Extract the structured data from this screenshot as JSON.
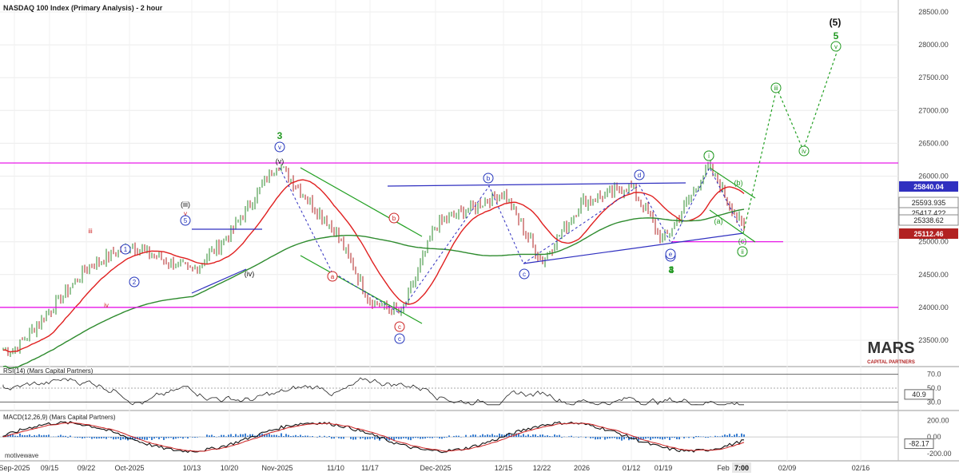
{
  "title": "NASDAQ 100 Index (Primary Analysis) - 2 hour",
  "colors": {
    "up_bar": "#2e8b2e",
    "down_bar": "#b22222",
    "ma_fast": "#e02020",
    "ma_slow": "#2e8b2e",
    "magenta_line": "#e600e6",
    "blue_line": "#3030c0",
    "green_line": "#22a022",
    "wave_blue": "#2233bb",
    "wave_red": "#cc2222",
    "wave_green": "#229922",
    "macd_hist": "#3b7fd1"
  },
  "chart_data": [
    {
      "type": "line",
      "name": "price-panel",
      "title": "NASDAQ 100 Index (Primary Analysis) - 2 hour",
      "x_ticks": [
        "Sep-2025",
        "09/15",
        "09/22",
        "Oct-2025",
        "10/13",
        "10/20",
        "Nov-2025",
        "11/10",
        "11/17",
        "Dec-2025",
        "12/15",
        "12/22",
        "2026",
        "01/12",
        "01/19",
        "Feb",
        "02/09",
        "02/16"
      ],
      "x_axis_timestamp": "7:00",
      "y_ticks": [
        23500,
        24000,
        24500,
        25000,
        25500,
        26000,
        26500,
        27000,
        27500,
        28000,
        28500
      ],
      "y_tick_labels": [
        "23500.00",
        "24000.00",
        "24500.00",
        "25000.00",
        "25500.00",
        "26000.00",
        "26500.00",
        "27000.00",
        "27500.00",
        "28000.00",
        "28500.00"
      ],
      "ylim": [
        23200,
        28650
      ],
      "price_path": [
        [
          "Sep-2025",
          23350
        ],
        [
          "09/15",
          23950
        ],
        [
          "09/22",
          24600
        ],
        [
          "Oct-2025",
          24950
        ],
        [
          "10/13",
          24550
        ],
        [
          "10/20",
          25100
        ],
        [
          "Nov-2025",
          26200
        ],
        [
          "11/10",
          25150
        ],
        [
          "11/17",
          24100
        ],
        [
          "11/20",
          23900
        ],
        [
          "Dec-2025",
          25250
        ],
        [
          "12/15",
          25750
        ],
        [
          "12/22",
          24700
        ],
        [
          "2026",
          25600
        ],
        [
          "01/12",
          25850
        ],
        [
          "01/19",
          25000
        ],
        [
          "Feb",
          26150
        ],
        [
          "Feb",
          25200
        ]
      ],
      "projection": [
        [
          "Feb",
          25200
        ],
        [
          "Feb",
          27300
        ],
        [
          "02/09",
          26400
        ],
        [
          "02/16",
          28000
        ]
      ],
      "horizontal_levels": [
        26200,
        24000,
        25000
      ],
      "price_labels": [
        {
          "value": "25840.04",
          "style": "filled",
          "color": "#3030c0"
        },
        {
          "value": "25593.935",
          "style": "outline"
        },
        {
          "value": "25417.4??",
          "style": "outline"
        },
        {
          "value": "25338.62",
          "style": "outline"
        },
        {
          "value": "25112.46",
          "style": "filled",
          "color": "#b22222"
        }
      ],
      "wave_labels": [
        "(5)",
        "5",
        "v",
        "iii",
        "iv",
        "3",
        "v",
        "(v)",
        "(iii)",
        "v",
        "5",
        "3",
        "4",
        "2",
        "1",
        "iii",
        "iv",
        "i",
        "ii",
        "(iv)",
        "a",
        "b",
        "c",
        "c",
        "b",
        "d",
        "e",
        "4",
        "i",
        "ii",
        "(a)",
        "(b)",
        "(c)",
        "c"
      ],
      "logo": "MARS CAPITAL PARTNERS"
    },
    {
      "type": "line",
      "name": "rsi-panel",
      "label": "RSI(14) (Mars Capital Partners)",
      "levels": [
        70,
        50,
        30
      ],
      "level_labels": [
        "70.0",
        "50.0",
        "30.0"
      ],
      "current_value": "40.9",
      "ylim": [
        20,
        80
      ]
    },
    {
      "type": "line",
      "name": "macd-panel",
      "label": "MACD(12,26,9) (Mars Capital Partners)",
      "y_ticks": [
        200,
        0,
        -200
      ],
      "y_tick_labels": [
        "200.00",
        "0.00",
        "-200.00"
      ],
      "current_value": "-82.17",
      "ylim": [
        -260,
        300
      ]
    }
  ],
  "footer": "motivewave"
}
